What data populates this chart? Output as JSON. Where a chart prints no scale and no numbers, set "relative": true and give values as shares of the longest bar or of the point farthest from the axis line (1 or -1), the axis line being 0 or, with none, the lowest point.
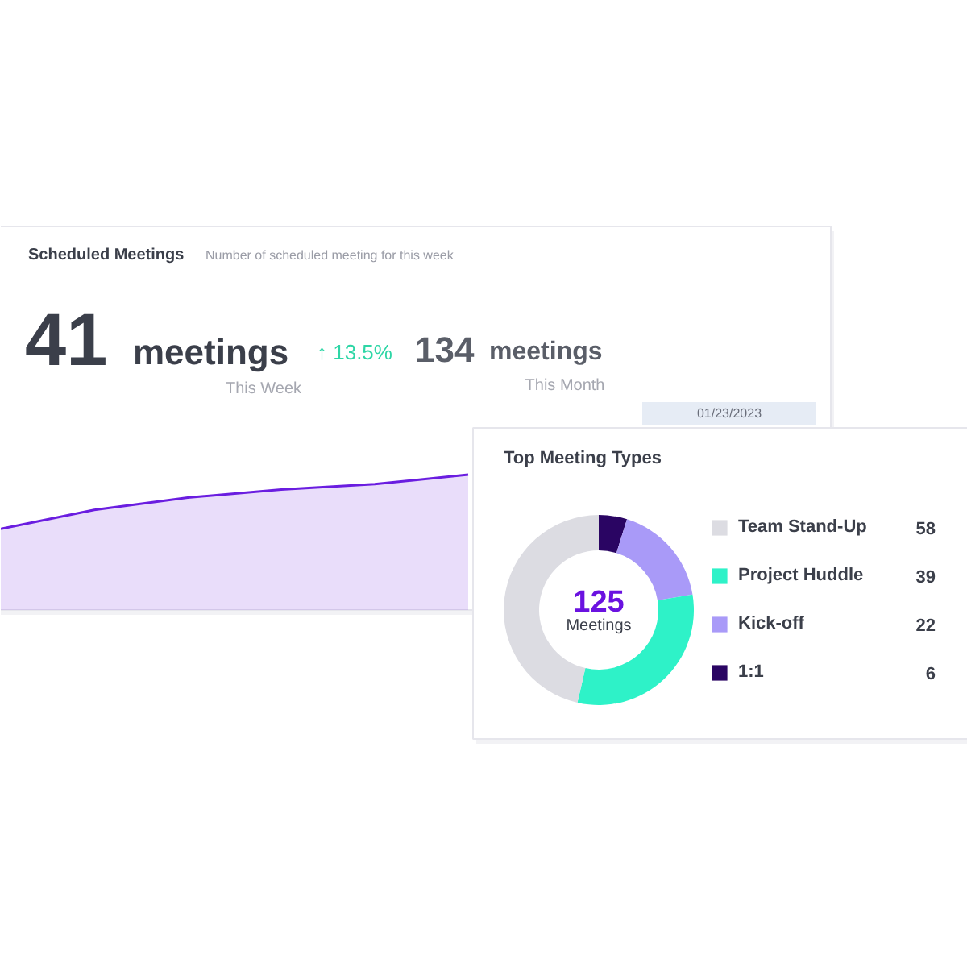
{
  "chart_data": [
    {
      "type": "area",
      "title": "Scheduled Meetings",
      "subtitle": "Number of scheduled meeting for this week",
      "relative": true,
      "color": "#6a1de0",
      "categories": [
        null,
        null,
        null,
        null,
        null,
        null,
        null,
        null,
        null
      ],
      "values": [
        0.6,
        0.74,
        0.83,
        0.89,
        0.93,
        1,
        null,
        null,
        null
      ],
      "annotations": [
        "41",
        "meetings",
        "↑ 13.5%",
        "This Week",
        "134",
        "meetings",
        "This Month",
        "01/23/2023"
      ]
    },
    {
      "type": "donut",
      "title": "Top Meeting Types",
      "legend": "right",
      "data_labels": true,
      "categories": [
        "Team Stand-Up",
        "Project Huddle",
        "Kick-off",
        "1:1"
      ],
      "values": [
        58,
        39,
        22,
        6
      ],
      "colors": [
        "#dcdce2",
        "#2ef2c8",
        "#a99af8",
        "#2a0563"
      ],
      "annotations": [
        "125",
        "Meetings"
      ]
    }
  ]
}
